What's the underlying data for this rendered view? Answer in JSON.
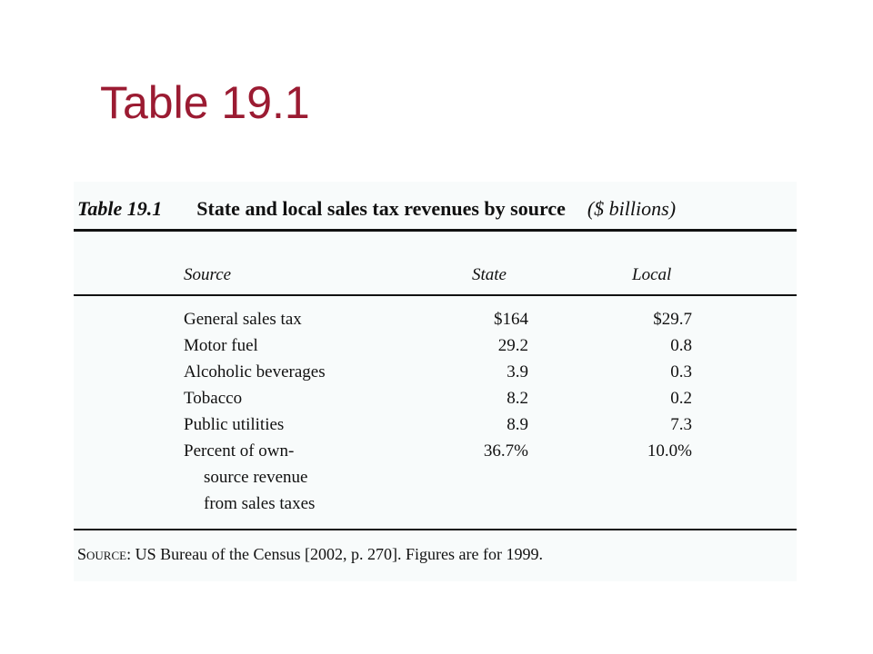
{
  "slide": {
    "title": "Table 19.1"
  },
  "table": {
    "number": "Table 19.1",
    "title": "State and local sales tax revenues by source",
    "unit": "($ billions)",
    "columns": {
      "source": "Source",
      "state": "State",
      "local": "Local"
    },
    "rows": [
      {
        "source": "General sales tax",
        "state": "$164",
        "local": "$29.7"
      },
      {
        "source": "Motor fuel",
        "state": "29.2",
        "local": "0.8"
      },
      {
        "source": "Alcoholic beverages",
        "state": "3.9",
        "local": "0.3"
      },
      {
        "source": "Tobacco",
        "state": "8.2",
        "local": "0.2"
      },
      {
        "source": "Public utilities",
        "state": "8.9",
        "local": "7.3"
      },
      {
        "source": "Percent of own-",
        "source_cont": [
          "source revenue",
          "from sales taxes"
        ],
        "state": "36.7%",
        "local": "10.0%"
      }
    ],
    "source_label": "Source:",
    "source_text": "US Bureau of the Census [2002, p. 270]. Figures are for 1999."
  }
}
